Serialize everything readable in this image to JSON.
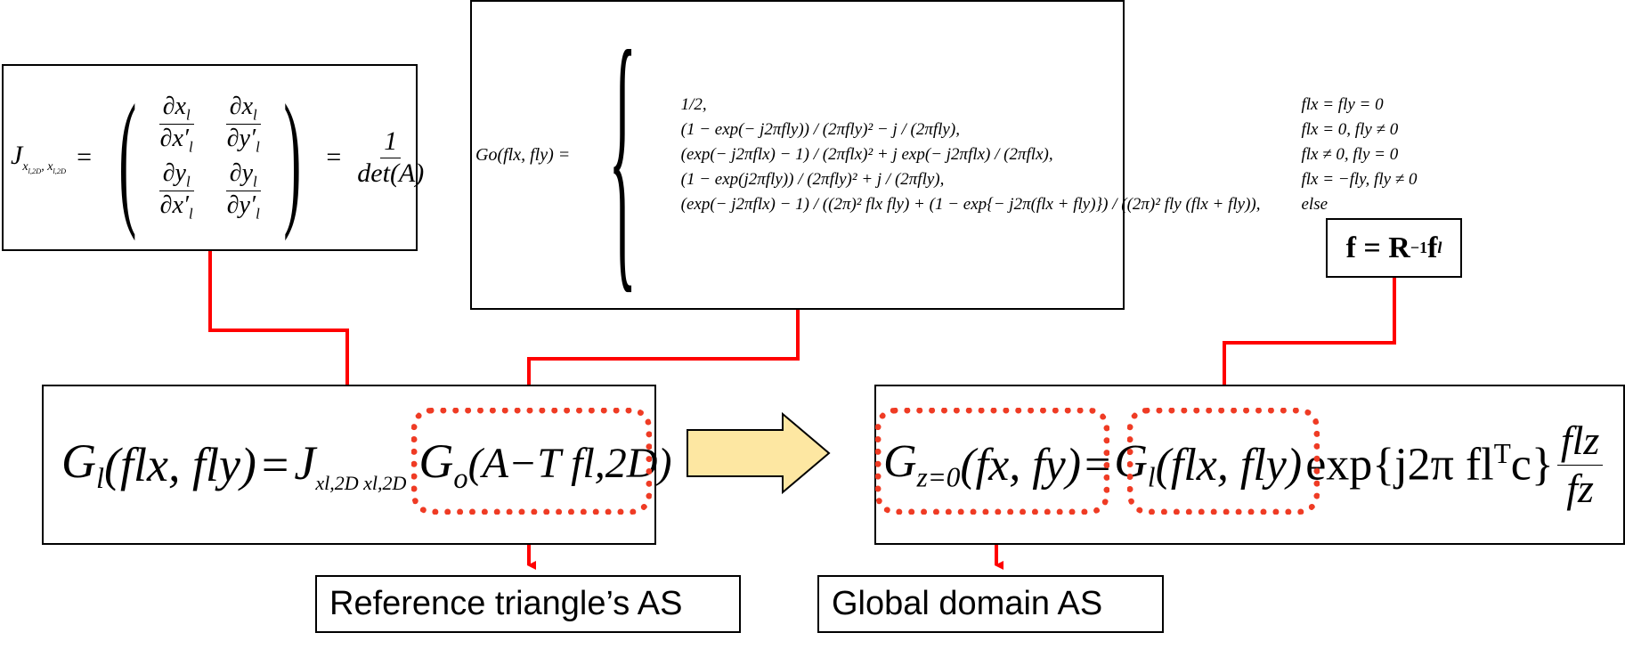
{
  "jacobian_box": {
    "lhs": "J",
    "lhs_sub": "x",
    "lhs_sub2": "l,2D",
    "lhs_sub3": ", x",
    "lhs_sub4": "l,2D",
    "m11_num": "∂x",
    "m11_num_sub": "l",
    "m11_den": "∂x′",
    "m11_den_sub": "l",
    "m12_num": "∂x",
    "m12_num_sub": "l",
    "m12_den": "∂y′",
    "m12_den_sub": "l",
    "m21_num": "∂y",
    "m21_num_sub": "l",
    "m21_den": "∂x′",
    "m21_den_sub": "l",
    "m22_num": "∂y",
    "m22_num_sub": "l",
    "m22_den": "∂y′",
    "m22_den_sub": "l",
    "rhs_num": "1",
    "rhs_den": "det(A)"
  },
  "cases_box": {
    "lhs": "Go(flx, fly) =",
    "rows": [
      {
        "expr": "1/2,",
        "cond": "flx = fly = 0"
      },
      {
        "expr": "(1 − exp(− j2πfly)) / (2πfly)² − j / (2πfly),",
        "cond": "flx = 0, fly ≠ 0"
      },
      {
        "expr": "(exp(− j2πflx) − 1) / (2πflx)² + j exp(− j2πflx) / (2πflx),",
        "cond": "flx ≠ 0, fly = 0"
      },
      {
        "expr": "(1 − exp(j2πfly)) / (2πfly)² + j / (2πfly),",
        "cond": "flx = −fly, fly ≠ 0"
      },
      {
        "expr": "(exp(− j2πflx) − 1) / ((2π)² flx fly) + (1 − exp{− j2π(flx + fly)}) / ((2π)² fly (flx + fly)),",
        "cond": "else"
      }
    ]
  },
  "rotation_box": {
    "text": "f = R",
    "sup": "−1",
    "tail": "f",
    "sub": "l"
  },
  "local_eq": {
    "G": "G",
    "G_sub": "l",
    "args": "(flx, fly)",
    "eq": "=",
    "J": "J",
    "J_sub": "xl,2D xl,2D",
    "Go": "G",
    "Go_sub": "o",
    "Go_arg": "(A−T fl,2D)"
  },
  "global_eq": {
    "G": "G",
    "G_sub": "z=0",
    "args": "(fx, fy)",
    "eq": "=",
    "G2": "G",
    "G2_sub": "l",
    "args2": "(flx, fly)",
    "exp": "exp{j2π fl",
    "exp_sup": "T",
    "exp_tail": "c}",
    "frac_num": "flz",
    "frac_den": "fz"
  },
  "labels": {
    "reference": "Reference triangle’s AS",
    "global": "Global domain AS"
  },
  "colors": {
    "connector": "#ff0000",
    "dotted_highlight": "#ef3b24",
    "arrow_fill": "#fde7a2",
    "arrow_stroke": "#000000"
  }
}
